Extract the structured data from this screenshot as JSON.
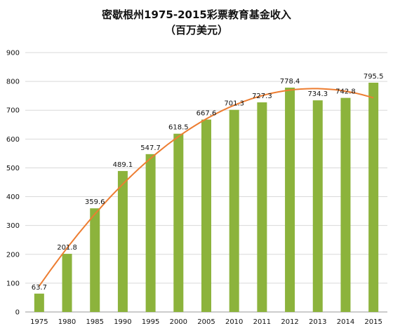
{
  "chart_data": {
    "type": "bar",
    "title": "密歇根州1975-2015彩票教育基金收入",
    "subtitle": "（百万美元）",
    "categories": [
      "1975",
      "1980",
      "1985",
      "1990",
      "1995",
      "2000",
      "2005",
      "2010",
      "2011",
      "2012",
      "2013",
      "2014",
      "2015"
    ],
    "values": [
      63.7,
      201.8,
      359.6,
      489.1,
      547.7,
      618.5,
      667.6,
      701.3,
      727.3,
      778.4,
      734.3,
      742.8,
      795.5
    ],
    "value_labels": [
      "63.7",
      "201.8",
      "359.6",
      "489.1",
      "547.7",
      "618.5",
      "667.6",
      "701.3",
      "727.3",
      "778.4",
      "734.3",
      "742.8",
      "795.5"
    ],
    "ylim": [
      0,
      900
    ],
    "yticks": [
      "0",
      "100",
      "200",
      "300",
      "400",
      "500",
      "600",
      "700",
      "800",
      "900"
    ],
    "grid": true,
    "trendline": true,
    "colors": {
      "bar": "#8CB33C",
      "trend": "#ED7D31",
      "grid": "#D9D9D9"
    }
  }
}
